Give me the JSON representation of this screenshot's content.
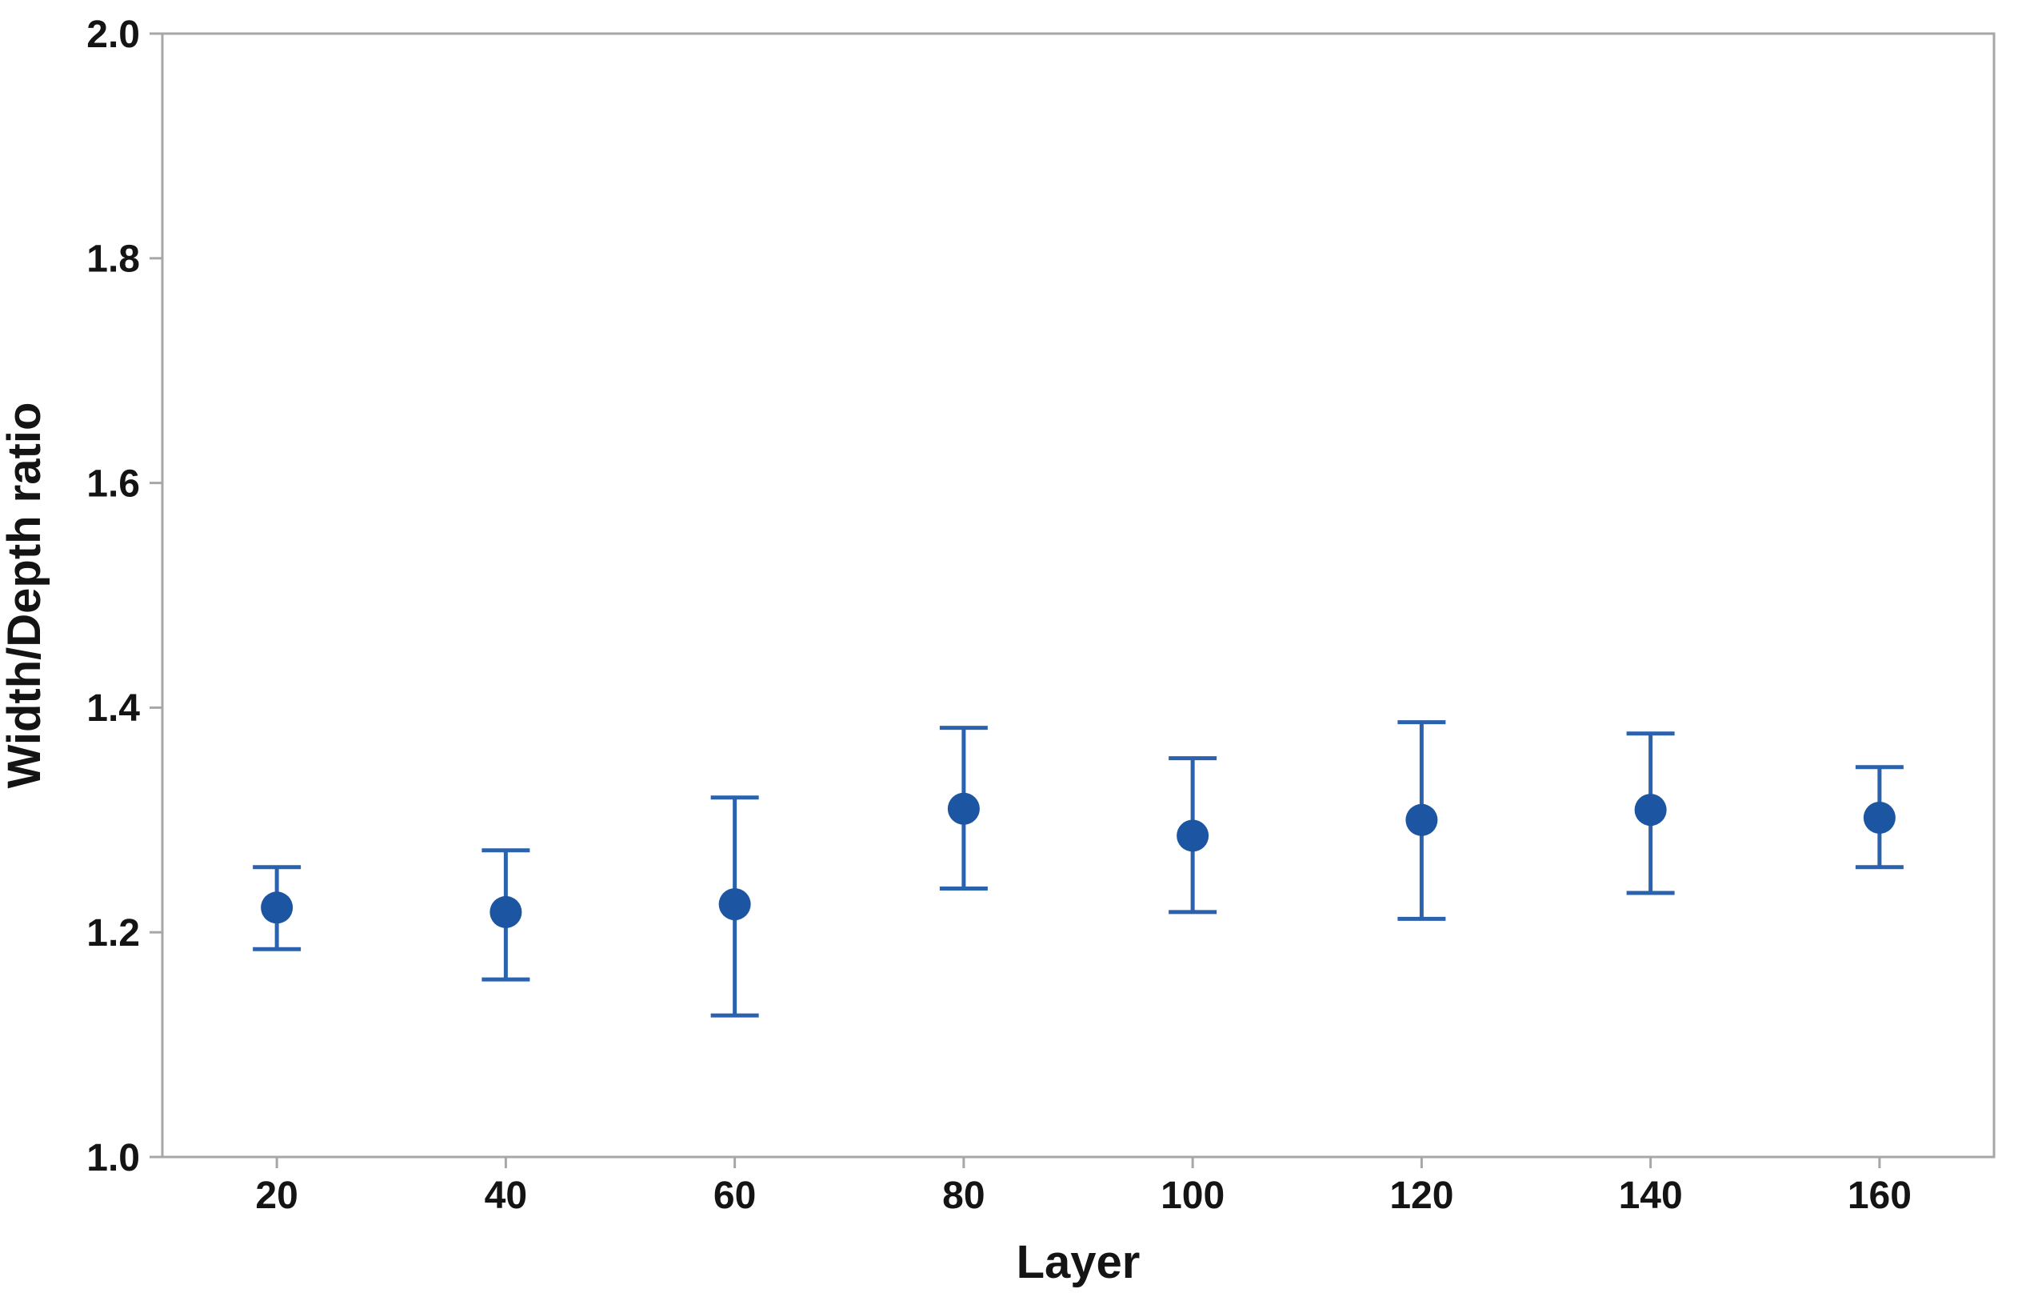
{
  "chart_data": {
    "type": "scatter",
    "title": "",
    "xlabel": "Layer",
    "ylabel": "Width/Depth ratio",
    "xlim": [
      10,
      170
    ],
    "ylim": [
      1.0,
      2.0
    ],
    "x_ticks": [
      20,
      40,
      60,
      80,
      100,
      120,
      140,
      160
    ],
    "y_ticks": [
      1.0,
      1.2,
      1.4,
      1.6,
      1.8,
      2.0
    ],
    "grid": false,
    "legend_position": "none",
    "series": [
      {
        "x": [
          20,
          40,
          60,
          80,
          100,
          120,
          140,
          160
        ],
        "y": [
          1.222,
          1.218,
          1.225,
          1.31,
          1.286,
          1.3,
          1.309,
          1.302
        ],
        "y_upper": [
          1.258,
          1.273,
          1.32,
          1.382,
          1.355,
          1.387,
          1.377,
          1.347
        ],
        "y_lower": [
          1.185,
          1.158,
          1.126,
          1.239,
          1.218,
          1.212,
          1.235,
          1.258
        ],
        "marker": "circle"
      }
    ],
    "colors": {
      "marker": "#1c55a2",
      "error_bar": "#2b62ae",
      "axis": "#a7a7a7",
      "text": "#141414",
      "background": "#ffffff"
    }
  }
}
